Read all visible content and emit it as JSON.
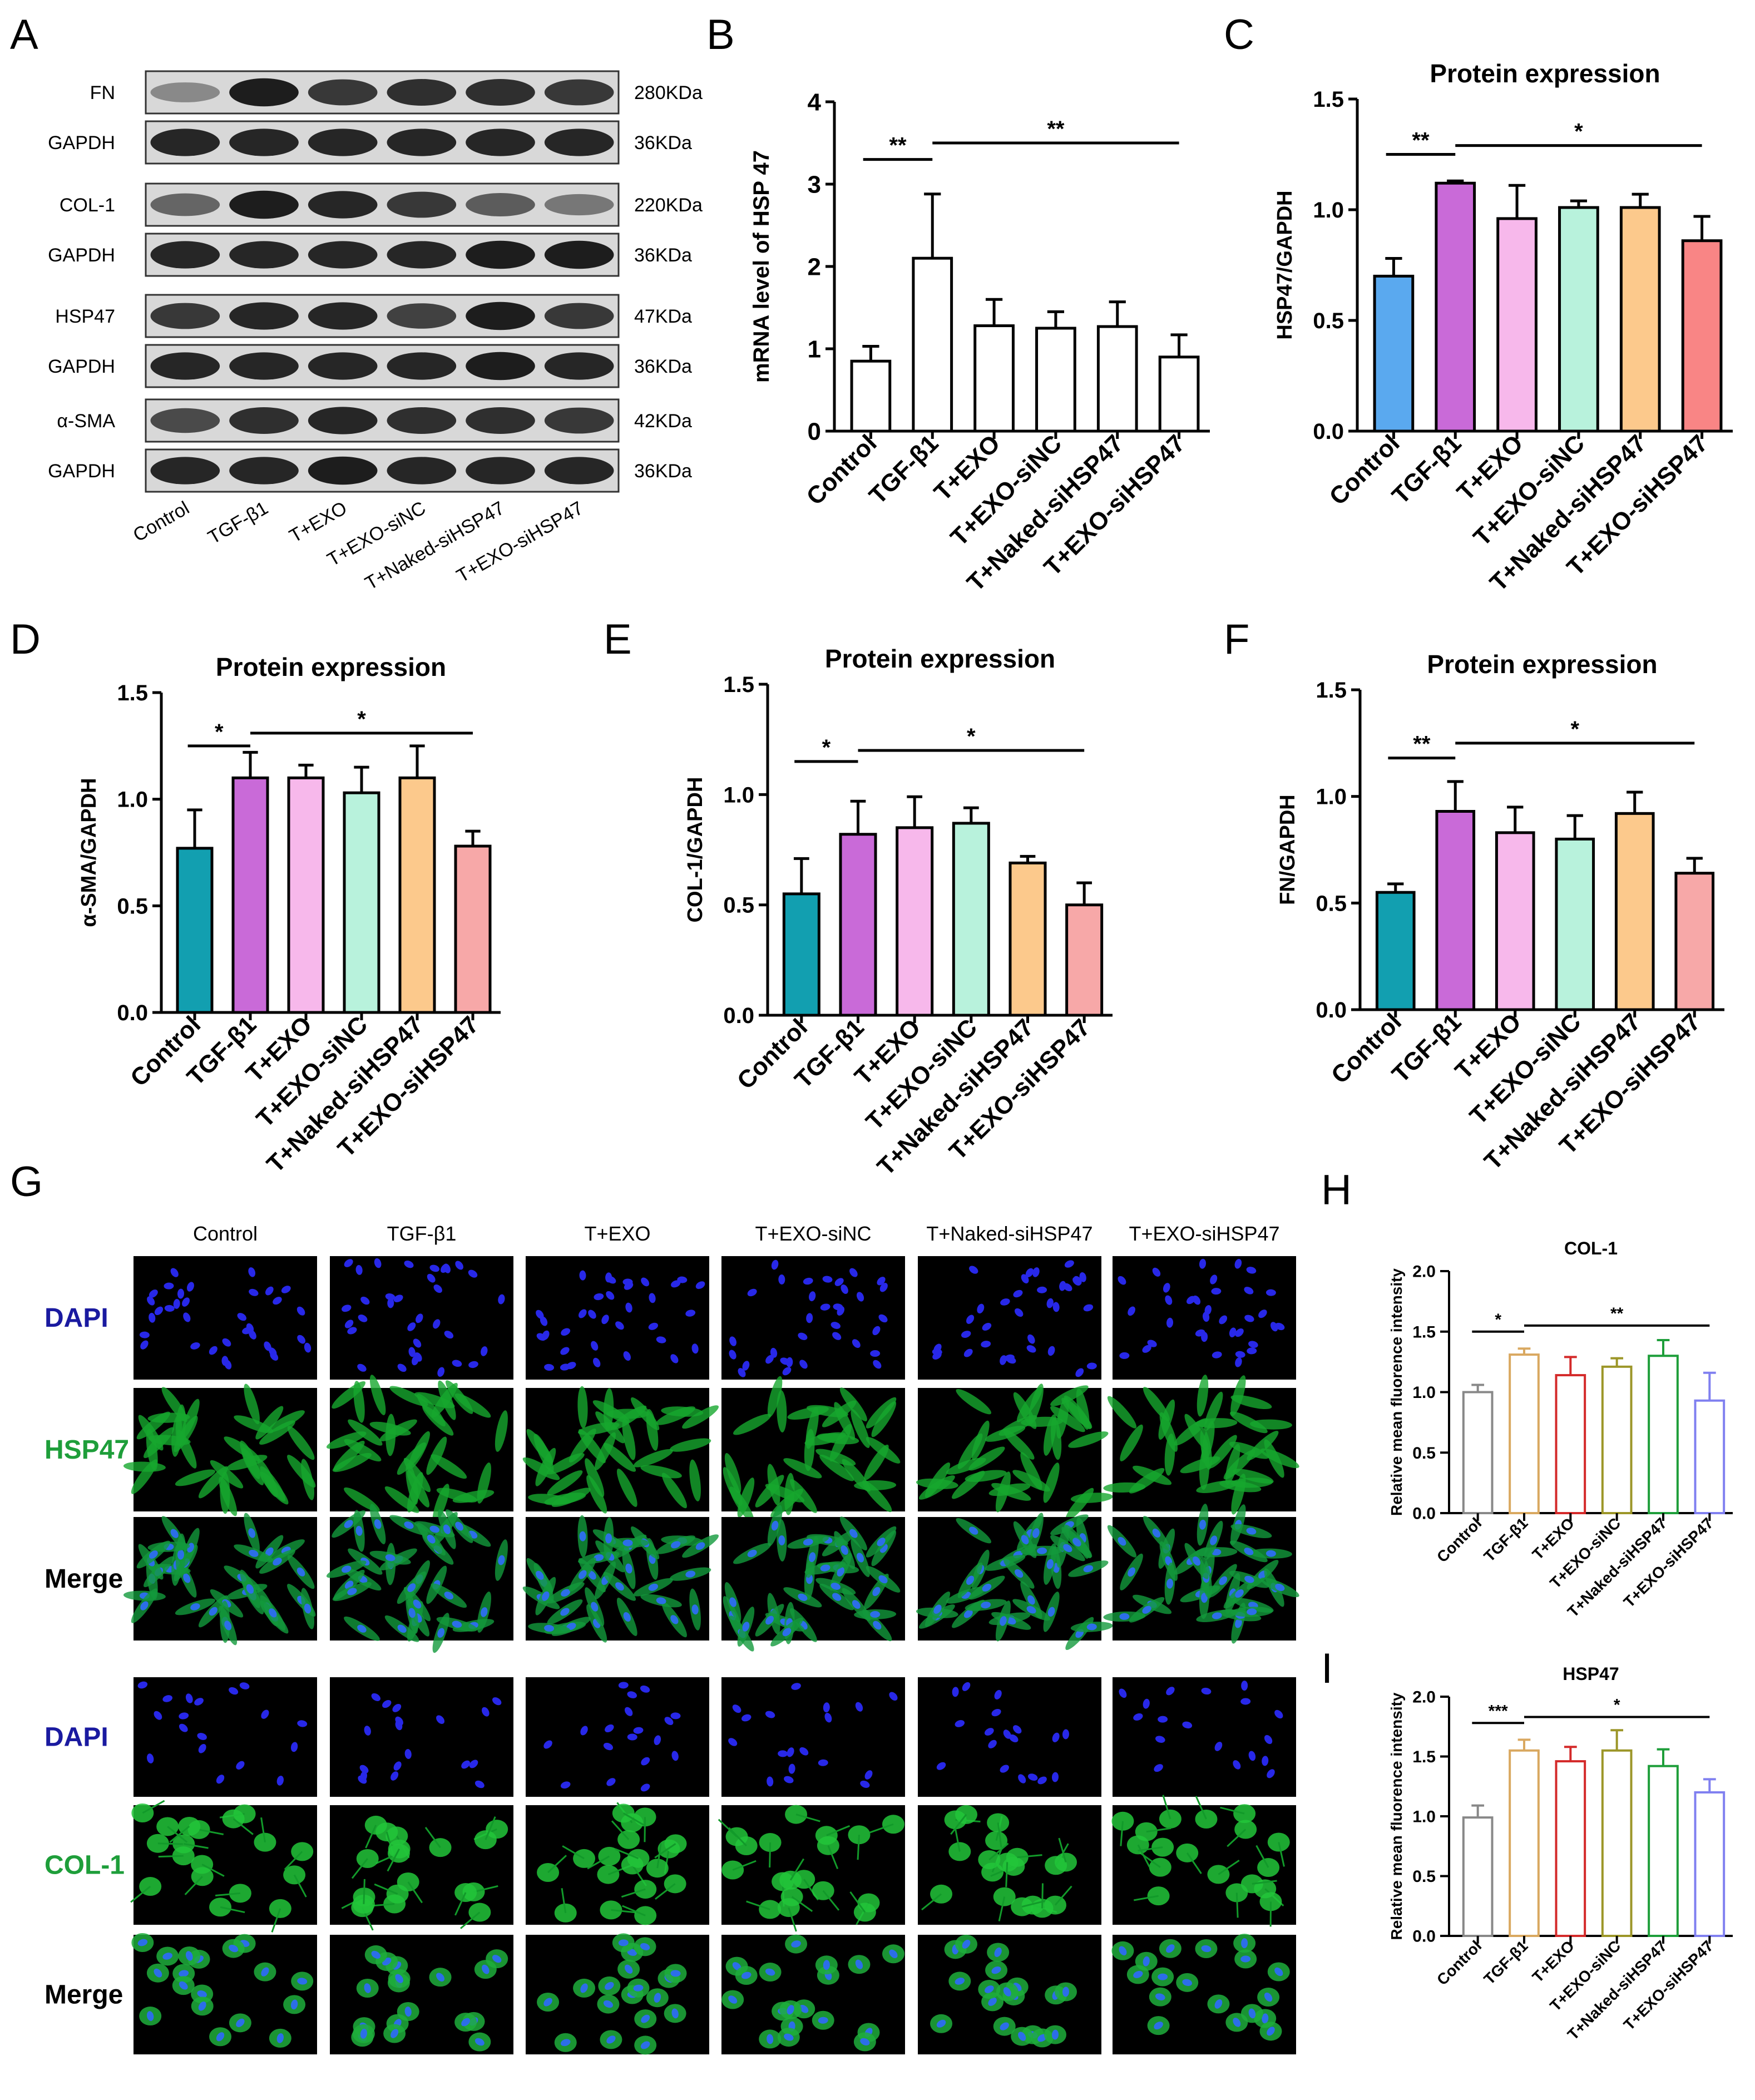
{
  "panel_letters": [
    "A",
    "B",
    "C",
    "D",
    "E",
    "F",
    "G",
    "H",
    "I"
  ],
  "western_blot": {
    "lanes": [
      "Control",
      "TGF-β1",
      "T+EXO",
      "T+EXO-siNC",
      "T+Naked-siHSP47",
      "T+EXO-siHSP47"
    ],
    "rows": [
      {
        "label": "FN",
        "kda": "280KDa",
        "intensity": [
          0.35,
          0.95,
          0.8,
          0.85,
          0.85,
          0.8
        ]
      },
      {
        "label": "GAPDH",
        "kda": "36KDa",
        "intensity": [
          0.9,
          0.9,
          0.9,
          0.9,
          0.9,
          0.9
        ]
      },
      {
        "label": "COL-1",
        "kda": "220KDa",
        "intensity": [
          0.55,
          0.95,
          0.9,
          0.8,
          0.6,
          0.45
        ]
      },
      {
        "label": "GAPDH",
        "kda": "36KDa",
        "intensity": [
          0.9,
          0.9,
          0.9,
          0.9,
          0.95,
          0.95
        ]
      },
      {
        "label": "HSP47",
        "kda": "47KDa",
        "intensity": [
          0.8,
          0.9,
          0.9,
          0.75,
          0.95,
          0.8
        ]
      },
      {
        "label": "GAPDH",
        "kda": "36KDa",
        "intensity": [
          0.9,
          0.9,
          0.9,
          0.9,
          0.95,
          0.9
        ]
      },
      {
        "label": "α-SMA",
        "kda": "42KDa",
        "intensity": [
          0.7,
          0.85,
          0.9,
          0.85,
          0.85,
          0.8
        ]
      },
      {
        "label": "GAPDH",
        "kda": "36KDa",
        "intensity": [
          0.9,
          0.9,
          0.95,
          0.9,
          0.9,
          0.9
        ]
      }
    ]
  },
  "chart_data": [
    {
      "id": "B",
      "type": "bar",
      "title": "",
      "ylabel": "mRNA level of HSP 47",
      "ylim": [
        0,
        4
      ],
      "yticks": [
        "0",
        "1",
        "2",
        "3",
        "4"
      ],
      "categories": [
        "Control",
        "TGF-β1",
        "T+EXO",
        "T+EXO-siNC",
        "T+Naked-siHSP47",
        "T+EXO-siHSP47"
      ],
      "values": [
        0.85,
        2.1,
        1.28,
        1.25,
        1.27,
        0.9
      ],
      "errors": [
        0.18,
        0.78,
        0.32,
        0.2,
        0.3,
        0.27
      ],
      "colors": [
        "#ffffff",
        "#ffffff",
        "#ffffff",
        "#ffffff",
        "#ffffff",
        "#ffffff"
      ],
      "sig": [
        {
          "from": 0,
          "to": 1,
          "label": "**",
          "y": 3.3
        },
        {
          "from": 1,
          "to": 5,
          "label": "**",
          "y": 3.5
        }
      ]
    },
    {
      "id": "C",
      "type": "bar",
      "title": "Protein expression",
      "ylabel": "HSP47/GAPDH",
      "ylim": [
        0,
        1.5
      ],
      "yticks": [
        "0.0",
        "0.5",
        "1.0",
        "1.5"
      ],
      "categories": [
        "Control",
        "TGF-β1",
        "T+EXO",
        "T+EXO-siNC",
        "T+Naked-siHSP47",
        "T+EXO-siHSP47"
      ],
      "values": [
        0.7,
        1.12,
        0.96,
        1.01,
        1.01,
        0.86
      ],
      "errors": [
        0.08,
        0.01,
        0.15,
        0.03,
        0.06,
        0.11
      ],
      "colors": [
        "#5aa9ef",
        "#c96ad8",
        "#f7b8eb",
        "#b8f2dc",
        "#fcc98c",
        "#f98585"
      ],
      "sig": [
        {
          "from": 0,
          "to": 1,
          "label": "**",
          "y": 1.25
        },
        {
          "from": 1,
          "to": 5,
          "label": "*",
          "y": 1.29
        }
      ]
    },
    {
      "id": "D",
      "type": "bar",
      "title": "Protein expression",
      "ylabel": "α-SMA/GAPDH",
      "ylim": [
        0,
        1.5
      ],
      "yticks": [
        "0.0",
        "0.5",
        "1.0",
        "1.5"
      ],
      "categories": [
        "Control",
        "TGF-β1",
        "T+EXO",
        "T+EXO-siNC",
        "T+Naked-siHSP47",
        "T+EXO-siHSP47"
      ],
      "values": [
        0.77,
        1.1,
        1.1,
        1.03,
        1.1,
        0.78
      ],
      "errors": [
        0.18,
        0.12,
        0.06,
        0.12,
        0.15,
        0.07
      ],
      "colors": [
        "#129fb0",
        "#c96ad8",
        "#f7b8eb",
        "#b8f2dc",
        "#fcc98c",
        "#f7a8a8"
      ],
      "sig": [
        {
          "from": 0,
          "to": 1,
          "label": "*",
          "y": 1.25
        },
        {
          "from": 1,
          "to": 5,
          "label": "*",
          "y": 1.31
        }
      ]
    },
    {
      "id": "E",
      "type": "bar",
      "title": "Protein expression",
      "ylabel": "COL-1/GAPDH",
      "ylim": [
        0,
        1.5
      ],
      "yticks": [
        "0.0",
        "0.5",
        "1.0",
        "1.5"
      ],
      "categories": [
        "Control",
        "TGF-β1",
        "T+EXO",
        "T+EXO-siNC",
        "T+Naked-siHSP47",
        "T+EXO-siHSP47"
      ],
      "values": [
        0.55,
        0.82,
        0.85,
        0.87,
        0.69,
        0.5
      ],
      "errors": [
        0.16,
        0.15,
        0.14,
        0.07,
        0.03,
        0.1
      ],
      "colors": [
        "#129fb0",
        "#c96ad8",
        "#f7b8eb",
        "#b8f2dc",
        "#fcc98c",
        "#f7a8a8"
      ],
      "sig": [
        {
          "from": 0,
          "to": 1,
          "label": "*",
          "y": 1.15
        },
        {
          "from": 1,
          "to": 5,
          "label": "*",
          "y": 1.2
        }
      ]
    },
    {
      "id": "F",
      "type": "bar",
      "title": "Protein expression",
      "ylabel": "FN/GAPDH",
      "ylim": [
        0,
        1.5
      ],
      "yticks": [
        "0.0",
        "0.5",
        "1.0",
        "1.5"
      ],
      "categories": [
        "Control",
        "TGF-β1",
        "T+EXO",
        "T+EXO-siNC",
        "T+Naked-siHSP47",
        "T+EXO-siHSP47"
      ],
      "values": [
        0.55,
        0.93,
        0.83,
        0.8,
        0.92,
        0.64
      ],
      "errors": [
        0.04,
        0.14,
        0.12,
        0.11,
        0.1,
        0.07
      ],
      "colors": [
        "#129fb0",
        "#c96ad8",
        "#f7b8eb",
        "#b8f2dc",
        "#fcc98c",
        "#f7a8a8"
      ],
      "sig": [
        {
          "from": 0,
          "to": 1,
          "label": "**",
          "y": 1.18
        },
        {
          "from": 1,
          "to": 5,
          "label": "*",
          "y": 1.25
        }
      ]
    },
    {
      "id": "H",
      "type": "bar",
      "title": "COL-1",
      "ylabel": "Relative mean fluorence intensity",
      "ylim": [
        0,
        2
      ],
      "yticks": [
        "0.0",
        "0.5",
        "1.0",
        "1.5",
        "2.0"
      ],
      "categories": [
        "Control",
        "TGF-β1",
        "T+EXO",
        "T+EXO-siNC",
        "T+Naked-siHSP47",
        "T+EXO-siHSP47"
      ],
      "values": [
        1.0,
        1.31,
        1.14,
        1.21,
        1.3,
        0.93
      ],
      "errors": [
        0.06,
        0.05,
        0.15,
        0.07,
        0.13,
        0.23
      ],
      "colors": [
        "#888888",
        "#d9a860",
        "#d42a2a",
        "#9c9628",
        "#1e9e3a",
        "#8080f0"
      ],
      "sig": [
        {
          "from": 0,
          "to": 1,
          "label": "*",
          "y": 1.5
        },
        {
          "from": 1,
          "to": 5,
          "label": "**",
          "y": 1.55
        }
      ]
    },
    {
      "id": "I",
      "type": "bar",
      "title": "HSP47",
      "ylabel": "Relative mean fluorence intensity",
      "ylim": [
        0,
        2
      ],
      "yticks": [
        "0.0",
        "0.5",
        "1.0",
        "1.5",
        "2.0"
      ],
      "categories": [
        "Control",
        "TGF-β1",
        "T+EXO",
        "T+EXO-siNC",
        "T+Naked-siHSP47",
        "T+EXO-siHSP47"
      ],
      "values": [
        0.99,
        1.55,
        1.46,
        1.55,
        1.42,
        1.2
      ],
      "errors": [
        0.1,
        0.09,
        0.12,
        0.17,
        0.14,
        0.11
      ],
      "colors": [
        "#888888",
        "#d9a860",
        "#d42a2a",
        "#9c9628",
        "#1e9e3a",
        "#8080f0"
      ],
      "sig": [
        {
          "from": 0,
          "to": 1,
          "label": "***",
          "y": 1.78
        },
        {
          "from": 1,
          "to": 5,
          "label": "*",
          "y": 1.83
        }
      ]
    }
  ],
  "microscopy": {
    "columns": [
      "Control",
      "TGF-β1",
      "T+EXO",
      "T+EXO-siNC",
      "T+Naked-siHSP47",
      "T+EXO-siHSP47"
    ],
    "group1_rows": [
      "DAPI",
      "HSP47",
      "Merge"
    ],
    "group2_rows": [
      "DAPI",
      "COL-1",
      "Merge"
    ],
    "colors": {
      "dapi_label": "#1a1aa0",
      "green_label": "#1e9e3a",
      "merge_label": "#000000"
    }
  }
}
